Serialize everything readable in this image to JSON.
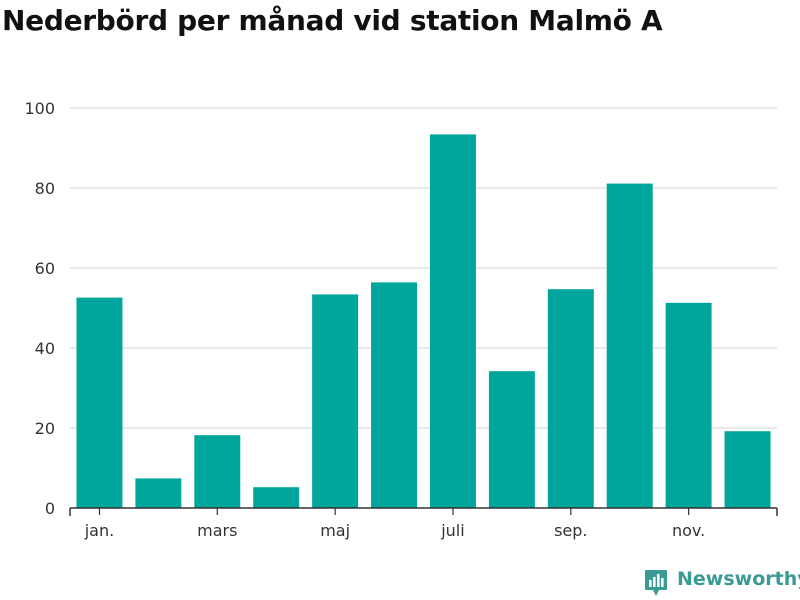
{
  "title": "Nederbörd per månad vid station Malmö A",
  "brand": {
    "name": "Newsworthy",
    "icon": "newsworthy-logo-icon",
    "color": "#3a9a94"
  },
  "colors": {
    "bar": "#00a59b",
    "grid": "#dddddd",
    "axis": "#333333",
    "text": "#333333"
  },
  "chart_data": {
    "type": "bar",
    "title": "Nederbörd per månad vid station Malmö A",
    "xlabel": "",
    "ylabel": "",
    "ylim": [
      0,
      100
    ],
    "yticks": [
      0,
      20,
      40,
      60,
      80,
      100
    ],
    "grid": true,
    "categories": [
      "jan.",
      "feb.",
      "mars",
      "apr.",
      "maj",
      "juni",
      "juli",
      "aug.",
      "sep.",
      "okt.",
      "nov.",
      "dec."
    ],
    "visible_xtick_labels": [
      "jan.",
      "mars",
      "maj",
      "juli",
      "sep.",
      "nov."
    ],
    "values": [
      52.6,
      7.4,
      18.2,
      5.2,
      53.4,
      56.4,
      93.4,
      34.2,
      54.7,
      81.1,
      51.3,
      19.2
    ]
  }
}
